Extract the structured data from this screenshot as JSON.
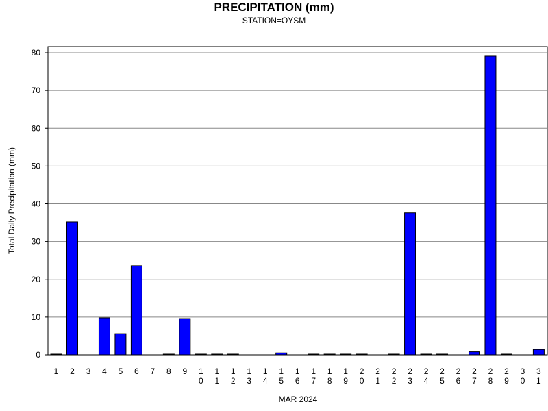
{
  "chart_data": {
    "type": "bar",
    "title": "PRECIPITATION (mm)",
    "subtitle": "STATION=OYSM",
    "xlabel": "MAR 2024",
    "ylabel": "Total Daily Precipitation (mm)",
    "ylim": [
      0,
      80
    ],
    "y_ticks": [
      0,
      10,
      20,
      30,
      40,
      50,
      60,
      70,
      80
    ],
    "grid": true,
    "bar_color": "#0000ff",
    "categories": [
      "1",
      "2",
      "3",
      "4",
      "5",
      "6",
      "7",
      "8",
      "9",
      "10",
      "11",
      "12",
      "13",
      "14",
      "15",
      "16",
      "17",
      "18",
      "19",
      "20",
      "21",
      "22",
      "23",
      "24",
      "25",
      "26",
      "27",
      "28",
      "29",
      "30",
      "31"
    ],
    "values": [
      0.1,
      35.2,
      0,
      9.8,
      5.6,
      23.6,
      0,
      0.1,
      9.6,
      0.1,
      0.1,
      0.1,
      0,
      0,
      0.5,
      0,
      0.1,
      0.1,
      0.1,
      0.1,
      0,
      0.1,
      37.6,
      0.1,
      0.1,
      0,
      0.8,
      79.1,
      0.1,
      0,
      1.4
    ]
  }
}
